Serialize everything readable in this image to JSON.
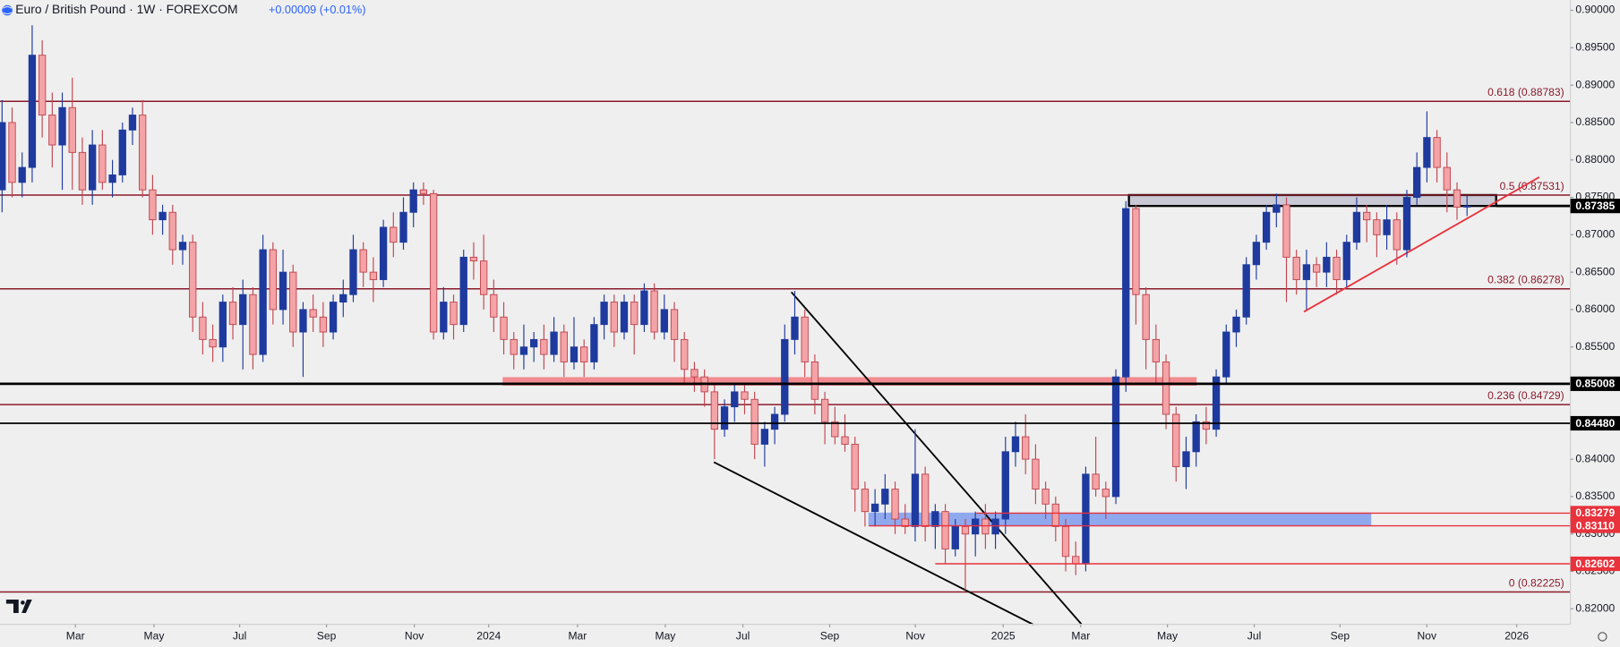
{
  "chart_data": {
    "type": "candlestick",
    "title": "Euro / British Pound · 1W · FOREXCOM",
    "change": "+0.00009 (+0.01%)",
    "up_color": "#1e3a9e",
    "down_color": "#f4a3a6",
    "down_border": "#c0454f",
    "candles": [
      [
        0.876,
        0.888,
        0.873,
        0.885
      ],
      [
        0.885,
        0.887,
        0.875,
        0.877
      ],
      [
        0.877,
        0.881,
        0.875,
        0.879
      ],
      [
        0.879,
        0.898,
        0.877,
        0.894
      ],
      [
        0.894,
        0.896,
        0.883,
        0.886
      ],
      [
        0.886,
        0.889,
        0.879,
        0.882
      ],
      [
        0.882,
        0.889,
        0.876,
        0.887
      ],
      [
        0.887,
        0.891,
        0.876,
        0.881
      ],
      [
        0.881,
        0.883,
        0.874,
        0.876
      ],
      [
        0.876,
        0.884,
        0.874,
        0.882
      ],
      [
        0.882,
        0.884,
        0.876,
        0.877
      ],
      [
        0.877,
        0.88,
        0.875,
        0.878
      ],
      [
        0.878,
        0.885,
        0.877,
        0.884
      ],
      [
        0.884,
        0.887,
        0.882,
        0.886
      ],
      [
        0.886,
        0.888,
        0.875,
        0.876
      ],
      [
        0.876,
        0.878,
        0.87,
        0.872
      ],
      [
        0.872,
        0.874,
        0.87,
        0.873
      ],
      [
        0.873,
        0.874,
        0.866,
        0.868
      ],
      [
        0.868,
        0.87,
        0.866,
        0.869
      ],
      [
        0.869,
        0.87,
        0.857,
        0.859
      ],
      [
        0.859,
        0.861,
        0.854,
        0.856
      ],
      [
        0.856,
        0.858,
        0.853,
        0.855
      ],
      [
        0.855,
        0.862,
        0.853,
        0.861
      ],
      [
        0.861,
        0.863,
        0.856,
        0.858
      ],
      [
        0.858,
        0.864,
        0.852,
        0.862
      ],
      [
        0.862,
        0.863,
        0.852,
        0.854
      ],
      [
        0.854,
        0.87,
        0.853,
        0.868
      ],
      [
        0.868,
        0.869,
        0.858,
        0.86
      ],
      [
        0.86,
        0.868,
        0.858,
        0.865
      ],
      [
        0.865,
        0.866,
        0.855,
        0.857
      ],
      [
        0.857,
        0.861,
        0.851,
        0.86
      ],
      [
        0.86,
        0.862,
        0.857,
        0.859
      ],
      [
        0.859,
        0.861,
        0.855,
        0.857
      ],
      [
        0.857,
        0.862,
        0.856,
        0.861
      ],
      [
        0.861,
        0.864,
        0.859,
        0.862
      ],
      [
        0.862,
        0.87,
        0.861,
        0.868
      ],
      [
        0.868,
        0.869,
        0.863,
        0.865
      ],
      [
        0.865,
        0.867,
        0.861,
        0.864
      ],
      [
        0.864,
        0.872,
        0.863,
        0.871
      ],
      [
        0.871,
        0.873,
        0.867,
        0.869
      ],
      [
        0.869,
        0.875,
        0.868,
        0.873
      ],
      [
        0.873,
        0.877,
        0.871,
        0.876
      ],
      [
        0.876,
        0.877,
        0.874,
        0.8755
      ],
      [
        0.8755,
        0.876,
        0.856,
        0.857
      ],
      [
        0.857,
        0.863,
        0.856,
        0.861
      ],
      [
        0.861,
        0.862,
        0.856,
        0.858
      ],
      [
        0.858,
        0.868,
        0.857,
        0.867
      ],
      [
        0.867,
        0.869,
        0.864,
        0.8665
      ],
      [
        0.8665,
        0.87,
        0.86,
        0.862
      ],
      [
        0.862,
        0.864,
        0.857,
        0.859
      ],
      [
        0.859,
        0.861,
        0.854,
        0.856
      ],
      [
        0.856,
        0.857,
        0.852,
        0.854
      ],
      [
        0.854,
        0.858,
        0.852,
        0.855
      ],
      [
        0.855,
        0.857,
        0.853,
        0.856
      ],
      [
        0.856,
        0.858,
        0.852,
        0.854
      ],
      [
        0.854,
        0.859,
        0.853,
        0.857
      ],
      [
        0.857,
        0.858,
        0.851,
        0.853
      ],
      [
        0.853,
        0.859,
        0.852,
        0.855
      ],
      [
        0.855,
        0.856,
        0.851,
        0.853
      ],
      [
        0.853,
        0.859,
        0.852,
        0.858
      ],
      [
        0.858,
        0.862,
        0.856,
        0.861
      ],
      [
        0.861,
        0.862,
        0.855,
        0.857
      ],
      [
        0.857,
        0.862,
        0.856,
        0.861
      ],
      [
        0.861,
        0.862,
        0.854,
        0.858
      ],
      [
        0.858,
        0.8635,
        0.857,
        0.8625
      ],
      [
        0.8625,
        0.8635,
        0.856,
        0.857
      ],
      [
        0.857,
        0.862,
        0.856,
        0.86
      ],
      [
        0.86,
        0.861,
        0.853,
        0.856
      ],
      [
        0.856,
        0.857,
        0.85,
        0.852
      ],
      [
        0.852,
        0.853,
        0.849,
        0.851
      ],
      [
        0.851,
        0.852,
        0.847,
        0.849
      ],
      [
        0.849,
        0.85,
        0.84,
        0.844
      ],
      [
        0.844,
        0.848,
        0.843,
        0.847
      ],
      [
        0.847,
        0.85,
        0.845,
        0.849
      ],
      [
        0.849,
        0.85,
        0.846,
        0.848
      ],
      [
        0.848,
        0.849,
        0.84,
        0.842
      ],
      [
        0.842,
        0.845,
        0.839,
        0.844
      ],
      [
        0.844,
        0.847,
        0.842,
        0.846
      ],
      [
        0.846,
        0.858,
        0.845,
        0.856
      ],
      [
        0.856,
        0.8625,
        0.854,
        0.859
      ],
      [
        0.859,
        0.86,
        0.851,
        0.853
      ],
      [
        0.853,
        0.854,
        0.846,
        0.848
      ],
      [
        0.848,
        0.849,
        0.842,
        0.845
      ],
      [
        0.845,
        0.847,
        0.842,
        0.843
      ],
      [
        0.843,
        0.846,
        0.841,
        0.842
      ],
      [
        0.842,
        0.843,
        0.833,
        0.836
      ],
      [
        0.836,
        0.837,
        0.831,
        0.833
      ],
      [
        0.833,
        0.836,
        0.831,
        0.834
      ],
      [
        0.834,
        0.838,
        0.832,
        0.836
      ],
      [
        0.836,
        0.837,
        0.83,
        0.832
      ],
      [
        0.832,
        0.834,
        0.83,
        0.831
      ],
      [
        0.831,
        0.844,
        0.829,
        0.838
      ],
      [
        0.838,
        0.839,
        0.829,
        0.831
      ],
      [
        0.831,
        0.834,
        0.828,
        0.833
      ],
      [
        0.833,
        0.834,
        0.826,
        0.828
      ],
      [
        0.828,
        0.832,
        0.827,
        0.831
      ],
      [
        0.831,
        0.832,
        0.8225,
        0.83
      ],
      [
        0.83,
        0.833,
        0.827,
        0.832
      ],
      [
        0.832,
        0.834,
        0.828,
        0.83
      ],
      [
        0.83,
        0.833,
        0.828,
        0.832
      ],
      [
        0.832,
        0.843,
        0.83,
        0.841
      ],
      [
        0.841,
        0.845,
        0.839,
        0.843
      ],
      [
        0.843,
        0.846,
        0.838,
        0.84
      ],
      [
        0.84,
        0.842,
        0.834,
        0.836
      ],
      [
        0.836,
        0.837,
        0.832,
        0.834
      ],
      [
        0.834,
        0.835,
        0.829,
        0.831
      ],
      [
        0.831,
        0.832,
        0.825,
        0.827
      ],
      [
        0.827,
        0.829,
        0.8245,
        0.826
      ],
      [
        0.826,
        0.839,
        0.825,
        0.838
      ],
      [
        0.838,
        0.843,
        0.835,
        0.836
      ],
      [
        0.836,
        0.837,
        0.832,
        0.835
      ],
      [
        0.835,
        0.852,
        0.834,
        0.851
      ],
      [
        0.851,
        0.8745,
        0.849,
        0.8735
      ],
      [
        0.8735,
        0.874,
        0.858,
        0.862
      ],
      [
        0.862,
        0.863,
        0.852,
        0.856
      ],
      [
        0.856,
        0.858,
        0.85,
        0.853
      ],
      [
        0.853,
        0.854,
        0.844,
        0.846
      ],
      [
        0.846,
        0.847,
        0.837,
        0.839
      ],
      [
        0.839,
        0.843,
        0.836,
        0.841
      ],
      [
        0.841,
        0.846,
        0.839,
        0.845
      ],
      [
        0.845,
        0.847,
        0.842,
        0.844
      ],
      [
        0.844,
        0.852,
        0.843,
        0.851
      ],
      [
        0.851,
        0.858,
        0.85,
        0.857
      ],
      [
        0.857,
        0.86,
        0.855,
        0.859
      ],
      [
        0.859,
        0.867,
        0.858,
        0.866
      ],
      [
        0.866,
        0.87,
        0.864,
        0.869
      ],
      [
        0.869,
        0.874,
        0.868,
        0.873
      ],
      [
        0.873,
        0.8755,
        0.871,
        0.874
      ],
      [
        0.874,
        0.875,
        0.861,
        0.867
      ],
      [
        0.867,
        0.868,
        0.862,
        0.864
      ],
      [
        0.864,
        0.868,
        0.86,
        0.866
      ],
      [
        0.866,
        0.867,
        0.863,
        0.865
      ],
      [
        0.865,
        0.869,
        0.863,
        0.867
      ],
      [
        0.867,
        0.868,
        0.862,
        0.864
      ],
      [
        0.864,
        0.87,
        0.863,
        0.869
      ],
      [
        0.869,
        0.875,
        0.868,
        0.873
      ],
      [
        0.873,
        0.874,
        0.869,
        0.872
      ],
      [
        0.872,
        0.873,
        0.867,
        0.87
      ],
      [
        0.87,
        0.874,
        0.868,
        0.872
      ],
      [
        0.872,
        0.873,
        0.866,
        0.868
      ],
      [
        0.868,
        0.876,
        0.867,
        0.875
      ],
      [
        0.875,
        0.881,
        0.874,
        0.879
      ],
      [
        0.879,
        0.8865,
        0.877,
        0.883
      ],
      [
        0.883,
        0.884,
        0.877,
        0.879
      ],
      [
        0.879,
        0.881,
        0.873,
        0.876
      ],
      [
        0.876,
        0.877,
        0.872,
        0.8737
      ],
      [
        0.8737,
        0.8752,
        0.8725,
        0.87385
      ]
    ],
    "xlim": [
      -0.206,
      156.3
    ],
    "xticks": [
      {
        "value": 7.31,
        "label": "Mar"
      },
      {
        "value": 15.14,
        "label": "May"
      },
      {
        "value": 23.68,
        "label": "Jul"
      },
      {
        "value": 32.33,
        "label": "Sep"
      },
      {
        "value": 41.08,
        "label": "Nov"
      },
      {
        "value": 48.5,
        "label": "2024"
      },
      {
        "value": 57.35,
        "label": "Mar"
      },
      {
        "value": 66.1,
        "label": "May"
      },
      {
        "value": 73.83,
        "label": "Jul"
      },
      {
        "value": 82.48,
        "label": "Sep"
      },
      {
        "value": 91.02,
        "label": "Nov"
      },
      {
        "value": 99.77,
        "label": "2025"
      },
      {
        "value": 107.5,
        "label": "Mar"
      },
      {
        "value": 116.14,
        "label": "May"
      },
      {
        "value": 124.79,
        "label": "Jul"
      },
      {
        "value": 133.34,
        "label": "Sep"
      },
      {
        "value": 141.99,
        "label": "Nov"
      },
      {
        "value": 150.95,
        "label": "2026"
      }
    ],
    "ylim": [
      0.81793,
      0.90138
    ],
    "yticks": [
      {
        "value": 0.82,
        "label": "0.82000"
      },
      {
        "value": 0.825,
        "label": "0.82500"
      },
      {
        "value": 0.83,
        "label": "0.83000"
      },
      {
        "value": 0.835,
        "label": "0.83500"
      },
      {
        "value": 0.84,
        "label": "0.84000"
      },
      {
        "value": 0.845,
        "label": "0.84500"
      },
      {
        "value": 0.85,
        "label": "0.85000"
      },
      {
        "value": 0.855,
        "label": "0.85500"
      },
      {
        "value": 0.86,
        "label": "0.86000"
      },
      {
        "value": 0.865,
        "label": "0.86500"
      },
      {
        "value": 0.87,
        "label": "0.87000"
      },
      {
        "value": 0.875,
        "label": "0.87500"
      },
      {
        "value": 0.88,
        "label": "0.88000"
      },
      {
        "value": 0.885,
        "label": "0.88500"
      },
      {
        "value": 0.89,
        "label": "0.89000"
      },
      {
        "value": 0.895,
        "label": "0.89500"
      },
      {
        "value": 0.9,
        "label": "0.90000"
      }
    ],
    "zones": [
      {
        "x": [
          49.94,
          119.0
        ],
        "y": [
          0.8499,
          0.8509
        ],
        "color": "#f28b8f",
        "border": "#f28b8f"
      },
      {
        "x": [
          86.39,
          136.4
        ],
        "y": [
          0.8311,
          0.83279
        ],
        "color": "#8fa8ee",
        "border": "#8fa8ee"
      },
      {
        "x": [
          112.3,
          148.9
        ],
        "y": [
          0.87385,
          0.87531
        ],
        "color": "#c9c9d6",
        "border": "#000000"
      }
    ],
    "fib_levels": [
      {
        "value": 0.88783,
        "label": "0.618 (0.88783)"
      },
      {
        "value": 0.87531,
        "label": "0.5 (0.87531)"
      },
      {
        "value": 0.86278,
        "label": "0.382 (0.86278)"
      },
      {
        "value": 0.84729,
        "label": "0.236 (0.84729)"
      },
      {
        "value": 0.82225,
        "label": "0 (0.82225)"
      }
    ],
    "fib_color": "#8b1a2b",
    "price_lines": [
      {
        "value": 0.85008,
        "label": "0.85008",
        "color": "#000000",
        "start": -0.206,
        "width": 2.4
      },
      {
        "value": 0.8448,
        "label": "0.84480",
        "color": "#000000",
        "start": -0.206,
        "width": 1.6
      },
      {
        "value": 0.87385,
        "label": "0.87385",
        "color": "#000000",
        "start": 148.9,
        "width": 2.4
      },
      {
        "value": 0.83279,
        "label": "0.83279",
        "color": "#e8323c",
        "start": 97.1,
        "width": 1.2
      },
      {
        "value": 0.8311,
        "label": "0.83110",
        "color": "#e8323c",
        "start": 86.39,
        "width": 1.2
      },
      {
        "value": 0.82602,
        "label": "0.82602",
        "color": "#e8323c",
        "start": 93.0,
        "width": 1.2
      }
    ],
    "trendlines": [
      {
        "x": [
          78.66,
          107.6
        ],
        "y": [
          0.86234,
          0.8179
        ],
        "color": "#000000"
      },
      {
        "x": [
          70.94,
          102.76
        ],
        "y": [
          0.8396,
          0.8179
        ],
        "color": "#000000"
      },
      {
        "x": [
          129.74,
          153.2
        ],
        "y": [
          0.8597,
          0.8777
        ],
        "color": "#e8323c"
      }
    ]
  }
}
